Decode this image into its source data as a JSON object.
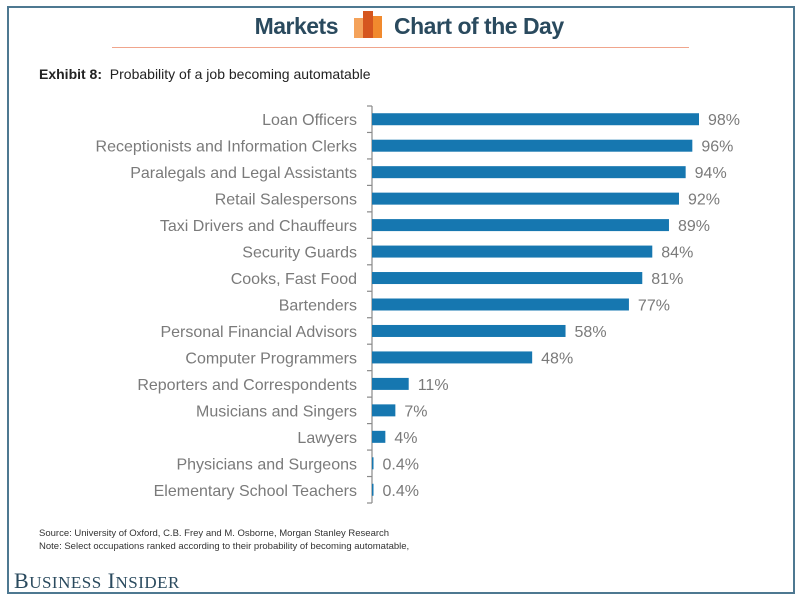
{
  "header": {
    "brand_left": "Markets",
    "brand_right": "Chart of the Day",
    "logo_icon": "bar-chart-logo-icon",
    "colors": {
      "text": "#2a4a5e",
      "rule": "#f0a58c",
      "logo_light": "#f4a25a",
      "logo_dark": "#d5561f",
      "logo_mid": "#f18a2e"
    }
  },
  "exhibit": {
    "label": "Exhibit 8:",
    "title": "Probability of a job becoming automatable"
  },
  "footer": {
    "source": "Source: University of Oxford, C.B. Frey and M. Osborne, Morgan Stanley Research",
    "note": "Note: Select occupations ranked according to their probability of becoming automatable,",
    "publisher_first_initial": "B",
    "publisher_first_rest": "USINESS",
    "publisher_second_initial": "I",
    "publisher_second_rest": "NSIDER"
  },
  "chart_data": {
    "type": "bar",
    "orientation": "horizontal",
    "title": "Probability of a job becoming automatable",
    "xlabel": "",
    "ylabel": "",
    "xlim": [
      0,
      100
    ],
    "grid": false,
    "legend": "none",
    "bar_color": "#1677b0",
    "categories": [
      "Loan Officers",
      "Receptionists and Information Clerks",
      "Paralegals and Legal Assistants",
      "Retail Salespersons",
      "Taxi Drivers and Chauffeurs",
      "Security Guards",
      "Cooks, Fast Food",
      "Bartenders",
      "Personal Financial Advisors",
      "Computer Programmers",
      "Reporters and Correspondents",
      "Musicians and Singers",
      "Lawyers",
      "Physicians and Surgeons",
      "Elementary School Teachers"
    ],
    "values": [
      98,
      96,
      94,
      92,
      89,
      84,
      81,
      77,
      58,
      48,
      11,
      7,
      4,
      0.4,
      0.4
    ],
    "data_labels": [
      "98%",
      "96%",
      "94%",
      "92%",
      "89%",
      "84%",
      "81%",
      "77%",
      "58%",
      "48%",
      "11%",
      "7%",
      "4%",
      "0.4%",
      "0.4%"
    ]
  }
}
